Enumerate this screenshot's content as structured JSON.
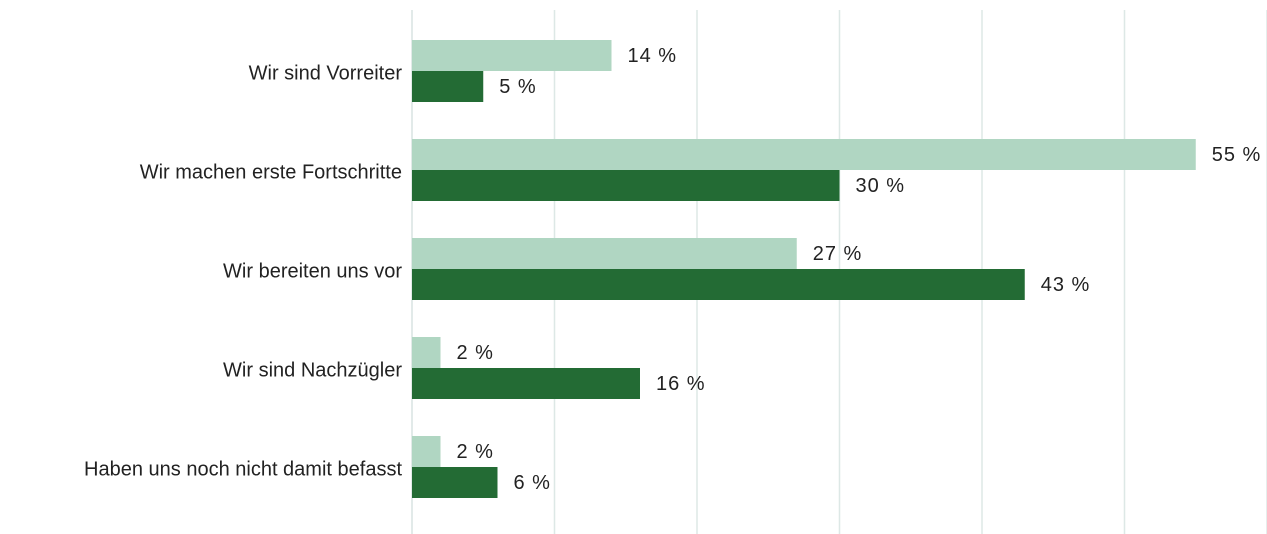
{
  "chart_data": {
    "type": "bar",
    "orientation": "horizontal",
    "categories": [
      "Wir sind Vorreiter",
      "Wir machen erste Fortschritte",
      "Wir bereiten uns vor",
      "Wir sind Nachzügler",
      "Haben uns noch nicht damit befasst"
    ],
    "series": [
      {
        "values": [
          14,
          55,
          27,
          2,
          2
        ],
        "labels": [
          "14 %",
          "55 %",
          "27 %",
          "2 %",
          "2 %"
        ],
        "color": "#b0d6c2"
      },
      {
        "values": [
          5,
          30,
          43,
          16,
          6
        ],
        "labels": [
          "5 %",
          "30 %",
          "43 %",
          "16 %",
          "6 %"
        ],
        "color": "#236b34"
      }
    ],
    "xlim": [
      0,
      60
    ],
    "grid": true,
    "legend": "none",
    "title": "",
    "xlabel": "",
    "ylabel": ""
  }
}
